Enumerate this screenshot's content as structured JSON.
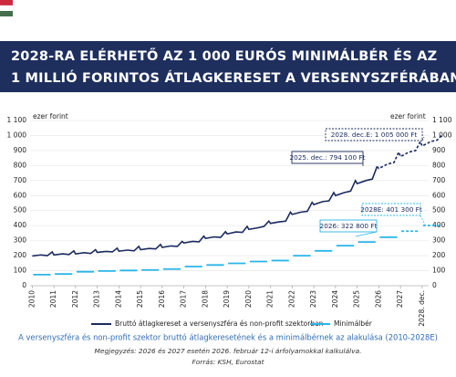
{
  "chart_data": {
    "type": "line",
    "title_lines": [
      "2028-RA ELÉRHETŐ AZ 1 000 EURÓS MINIMÁLBÉR ÉS AZ",
      "1 MILLIÓ FORINTOS ÁTLAGKERESET A VERSENYSZFÉRÁBAN"
    ],
    "y_axis_label": "ezer forint",
    "y2_axis_label": "ezer forint",
    "subtitle": "A versenyszféra és non-profit szektor bruttó átlagkeresetének és a minimálbérnek az alakulása (2010-2028E)",
    "notes": [
      "Megjegyzés: 2026 és 2027 esetén 2026. február 12-i árfolyamokkal kalkulálva.",
      "Forrás: KSH, Eurostat"
    ],
    "xlim": [
      2009.9,
      2028.3
    ],
    "xticks": [
      2010,
      2011,
      2012,
      2013,
      2014,
      2015,
      2016,
      2017,
      2018,
      2019,
      2020,
      2021,
      2022,
      2023,
      2024,
      2025,
      2026,
      2027,
      {
        "value": 2028,
        "label": "2028. dec."
      }
    ],
    "ylim": [
      0,
      1100
    ],
    "yticks": [
      0,
      100,
      200,
      300,
      400,
      500,
      600,
      700,
      800,
      900,
      {
        "value": 1000,
        "label": "1 000"
      },
      {
        "value": 1100,
        "label": "1 100"
      }
    ],
    "grid": true,
    "series": [
      {
        "name": "Bruttó átlagkereset a versenyszféra és non-profit szektorban",
        "color": "#1a2a5e",
        "forecast_from": 2025.92,
        "x": [
          2010,
          2010.4,
          2010.7,
          2010.92,
          2011,
          2011.4,
          2011.7,
          2011.92,
          2012,
          2012.4,
          2012.7,
          2012.92,
          2013,
          2013.4,
          2013.7,
          2013.92,
          2014,
          2014.4,
          2014.7,
          2014.92,
          2015,
          2015.4,
          2015.7,
          2015.92,
          2016,
          2016.4,
          2016.7,
          2016.92,
          2017,
          2017.4,
          2017.7,
          2017.92,
          2018,
          2018.4,
          2018.7,
          2018.92,
          2019,
          2019.4,
          2019.7,
          2019.92,
          2020,
          2020.4,
          2020.7,
          2020.92,
          2021,
          2021.4,
          2021.7,
          2021.92,
          2022,
          2022.4,
          2022.7,
          2022.92,
          2023,
          2023.4,
          2023.7,
          2023.92,
          2024,
          2024.4,
          2024.7,
          2024.92,
          2025,
          2025.4,
          2025.7,
          2025.92,
          2026,
          2026.4,
          2026.7,
          2026.92,
          2027,
          2027.4,
          2027.7,
          2027.92,
          2028,
          2028.4,
          2028.7,
          2028.92
        ],
        "values": [
          198,
          205,
          200,
          225,
          205,
          212,
          208,
          232,
          212,
          220,
          215,
          240,
          222,
          228,
          225,
          250,
          230,
          237,
          232,
          262,
          240,
          248,
          245,
          275,
          255,
          265,
          262,
          295,
          285,
          295,
          292,
          330,
          315,
          325,
          322,
          360,
          345,
          358,
          355,
          395,
          375,
          385,
          395,
          430,
          415,
          425,
          430,
          490,
          475,
          490,
          495,
          555,
          540,
          560,
          565,
          620,
          600,
          620,
          630,
          700,
          680,
          700,
          710,
          794.1,
          780,
          810,
          820,
          890,
          860,
          890,
          900,
          960,
          930,
          960,
          970,
          1005
        ]
      },
      {
        "name": "Minimálbér",
        "color": "#29b5e8",
        "forecast_from": 2027,
        "x": [
          2010,
          2011,
          2012,
          2013,
          2014,
          2015,
          2016,
          2017,
          2018,
          2019,
          2020,
          2021,
          2022,
          2023,
          2024,
          2025,
          2026,
          2027,
          2028
        ],
        "values": [
          73.5,
          78,
          93,
          98,
          101.5,
          105,
          111,
          127.5,
          138,
          149,
          161,
          167.4,
          200,
          232,
          266.8,
          290.8,
          322.8,
          363,
          401.3
        ]
      }
    ],
    "annotations": [
      "2028. dec.E: 1 005 000 Ft",
      "2025. dec.: 794 100 Ft",
      "2028E: 401 300 Ft",
      "2026: 322 800 Ft"
    ]
  }
}
